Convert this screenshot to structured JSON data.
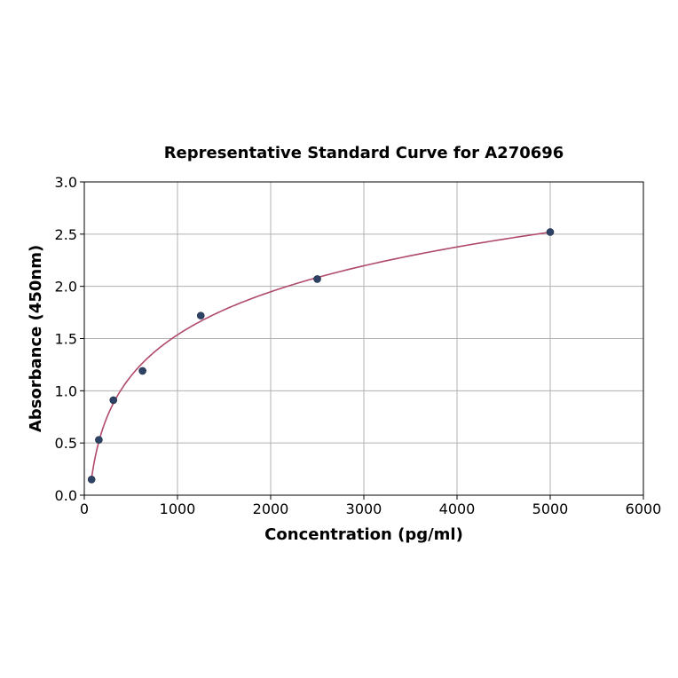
{
  "chart_data": {
    "type": "scatter",
    "title": "Representative Standard Curve for A270696",
    "xlabel": "Concentration (pg/ml)",
    "ylabel": "Absorbance (450nm)",
    "xlim": [
      0,
      6000
    ],
    "ylim": [
      0,
      3.0
    ],
    "x_ticks": [
      0,
      1000,
      2000,
      3000,
      4000,
      5000,
      6000
    ],
    "y_ticks": [
      0.0,
      0.5,
      1.0,
      1.5,
      2.0,
      2.5,
      3.0
    ],
    "x_tick_labels": [
      "0",
      "1000",
      "2000",
      "3000",
      "4000",
      "5000",
      "6000"
    ],
    "y_tick_labels": [
      "0.0",
      "0.5",
      "1.0",
      "1.5",
      "2.0",
      "2.5",
      "3.0"
    ],
    "grid": true,
    "series": [
      {
        "kind": "points",
        "color": "#2e4266",
        "x": [
          78,
          156,
          312,
          625,
          1250,
          2500,
          5000
        ],
        "y": [
          0.15,
          0.53,
          0.91,
          1.19,
          1.72,
          2.07,
          2.52
        ]
      },
      {
        "kind": "fitted-curve",
        "color": "#b04a6a",
        "x": [
          78,
          156,
          312,
          625,
          1250,
          2500,
          5000
        ],
        "y": [
          0.15,
          0.53,
          0.91,
          1.19,
          1.72,
          2.07,
          2.52
        ]
      }
    ]
  }
}
